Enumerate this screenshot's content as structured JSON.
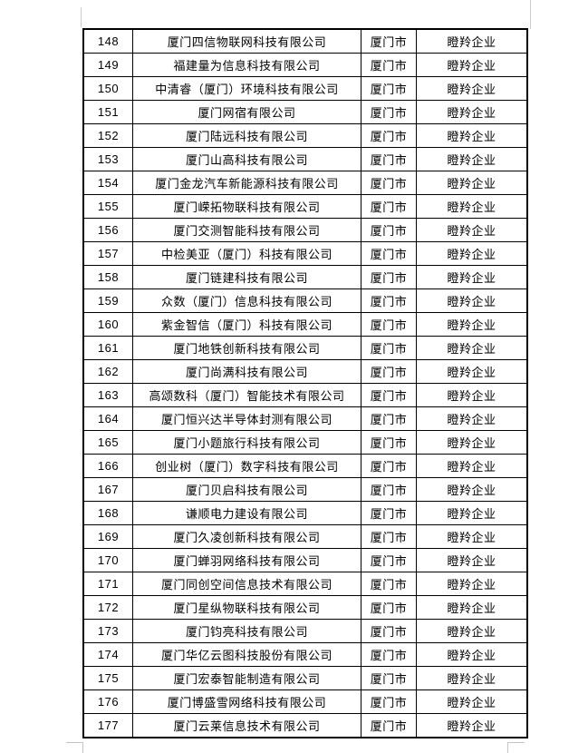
{
  "page": {
    "background_color": "#ffffff",
    "border_color": "#000000",
    "margin_guide_color": "#cccccc"
  },
  "table": {
    "columns": [
      "index",
      "company",
      "city",
      "category"
    ],
    "rows": [
      {
        "index": "148",
        "company": "厦门四信物联网科技有限公司",
        "city": "厦门市",
        "category": "瞪羚企业"
      },
      {
        "index": "149",
        "company": "福建量为信息科技有限公司",
        "city": "厦门市",
        "category": "瞪羚企业"
      },
      {
        "index": "150",
        "company": "中清睿（厦门）环境科技有限公司",
        "city": "厦门市",
        "category": "瞪羚企业"
      },
      {
        "index": "151",
        "company": "厦门网宿有限公司",
        "city": "厦门市",
        "category": "瞪羚企业"
      },
      {
        "index": "152",
        "company": "厦门陆远科技有限公司",
        "city": "厦门市",
        "category": "瞪羚企业"
      },
      {
        "index": "153",
        "company": "厦门山高科技有限公司",
        "city": "厦门市",
        "category": "瞪羚企业"
      },
      {
        "index": "154",
        "company": "厦门金龙汽车新能源科技有限公司",
        "city": "厦门市",
        "category": "瞪羚企业"
      },
      {
        "index": "155",
        "company": "厦门嵘拓物联科技有限公司",
        "city": "厦门市",
        "category": "瞪羚企业"
      },
      {
        "index": "156",
        "company": "厦门交测智能科技有限公司",
        "city": "厦门市",
        "category": "瞪羚企业"
      },
      {
        "index": "157",
        "company": "中检美亚（厦门）科技有限公司",
        "city": "厦门市",
        "category": "瞪羚企业"
      },
      {
        "index": "158",
        "company": "厦门链建科技有限公司",
        "city": "厦门市",
        "category": "瞪羚企业"
      },
      {
        "index": "159",
        "company": "众数（厦门）信息科技有限公司",
        "city": "厦门市",
        "category": "瞪羚企业"
      },
      {
        "index": "160",
        "company": "紫金智信（厦门）科技有限公司",
        "city": "厦门市",
        "category": "瞪羚企业"
      },
      {
        "index": "161",
        "company": "厦门地铁创新科技有限公司",
        "city": "厦门市",
        "category": "瞪羚企业"
      },
      {
        "index": "162",
        "company": "厦门尚满科技有限公司",
        "city": "厦门市",
        "category": "瞪羚企业"
      },
      {
        "index": "163",
        "company": "高颂数科（厦门）智能技术有限公司",
        "city": "厦门市",
        "category": "瞪羚企业"
      },
      {
        "index": "164",
        "company": "厦门恒兴达半导体封测有限公司",
        "city": "厦门市",
        "category": "瞪羚企业"
      },
      {
        "index": "165",
        "company": "厦门小题旅行科技有限公司",
        "city": "厦门市",
        "category": "瞪羚企业"
      },
      {
        "index": "166",
        "company": "创业树（厦门）数字科技有限公司",
        "city": "厦门市",
        "category": "瞪羚企业"
      },
      {
        "index": "167",
        "company": "厦门贝启科技有限公司",
        "city": "厦门市",
        "category": "瞪羚企业"
      },
      {
        "index": "168",
        "company": "谦顺电力建设有限公司",
        "city": "厦门市",
        "category": "瞪羚企业"
      },
      {
        "index": "169",
        "company": "厦门久凌创新科技有限公司",
        "city": "厦门市",
        "category": "瞪羚企业"
      },
      {
        "index": "170",
        "company": "厦门蝉羽网络科技有限公司",
        "city": "厦门市",
        "category": "瞪羚企业"
      },
      {
        "index": "171",
        "company": "厦门同创空间信息技术有限公司",
        "city": "厦门市",
        "category": "瞪羚企业"
      },
      {
        "index": "172",
        "company": "厦门星纵物联科技有限公司",
        "city": "厦门市",
        "category": "瞪羚企业"
      },
      {
        "index": "173",
        "company": "厦门钧亮科技有限公司",
        "city": "厦门市",
        "category": "瞪羚企业"
      },
      {
        "index": "174",
        "company": "厦门华亿云图科技股份有限公司",
        "city": "厦门市",
        "category": "瞪羚企业"
      },
      {
        "index": "175",
        "company": "厦门宏泰智能制造有限公司",
        "city": "厦门市",
        "category": "瞪羚企业"
      },
      {
        "index": "176",
        "company": "厦门博盛雪网络科技有限公司",
        "city": "厦门市",
        "category": "瞪羚企业"
      },
      {
        "index": "177",
        "company": "厦门云莱信息技术有限公司",
        "city": "厦门市",
        "category": "瞪羚企业"
      }
    ]
  }
}
